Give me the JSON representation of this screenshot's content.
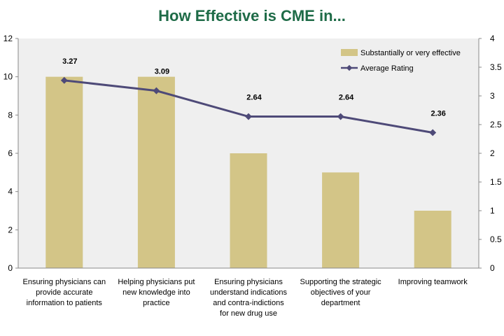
{
  "chart_data": {
    "type": "bar",
    "title": "How Effective is CME in...",
    "categories": [
      [
        "Ensuring physicians can",
        "provide accurate",
        "information to patients"
      ],
      [
        "Helping physicians put",
        "new knowledge into",
        "practice"
      ],
      [
        "Ensuring physicians",
        "understand indications",
        "and contra-indictions",
        "for new drug use"
      ],
      [
        "Supporting the strategic",
        "objectives of your",
        "department"
      ],
      [
        "Improving teamwork"
      ]
    ],
    "series": [
      {
        "name": "Substantially or very effective",
        "type": "bar",
        "axis": "left",
        "values": [
          10,
          10,
          6,
          5,
          3
        ],
        "color": "#d3c587"
      },
      {
        "name": "Average Rating",
        "type": "line",
        "axis": "right",
        "values": [
          3.27,
          3.09,
          2.64,
          2.64,
          2.36
        ],
        "color": "#4e4a78",
        "labels": [
          "3.27",
          "3.09",
          "2.64",
          "2.64",
          "2.36"
        ]
      }
    ],
    "y_left": {
      "min": 0,
      "max": 12,
      "step": 2,
      "ticks": [
        "0",
        "2",
        "4",
        "6",
        "8",
        "10",
        "12"
      ]
    },
    "y_right": {
      "min": 0,
      "max": 4,
      "step": 0.5,
      "ticks": [
        "0",
        "0.5",
        "1",
        "1.5",
        "2",
        "2.5",
        "3",
        "3.5",
        "4"
      ]
    },
    "legend_position": "top-right",
    "grid": false,
    "plot_background": "#efefef"
  }
}
